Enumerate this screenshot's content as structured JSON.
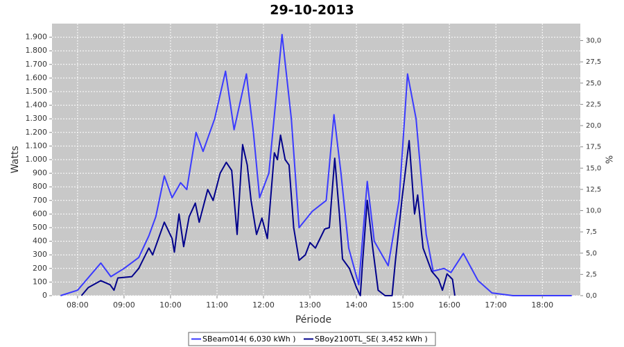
{
  "chart_data": {
    "type": "line",
    "title": "29-10-2013",
    "x_label": "Période",
    "y_label": "Watts",
    "y2_label": "%",
    "grid": true,
    "legend": "bottom",
    "xlim": [
      "07:27",
      "18:49"
    ],
    "xticks": [
      "08:00",
      "09:00",
      "10:00",
      "11:00",
      "12:00",
      "13:00",
      "14:00",
      "15:00",
      "16:00",
      "17:00",
      "18:00"
    ],
    "ylim": [
      0,
      2000
    ],
    "yticks": [
      0,
      100,
      200,
      300,
      400,
      500,
      600,
      700,
      800,
      900,
      {
        "value": 1000,
        "label": "1.000"
      },
      {
        "value": 1100,
        "label": "1.100"
      },
      {
        "value": 1200,
        "label": "1.200"
      },
      {
        "value": 1300,
        "label": "1.300"
      },
      {
        "value": 1400,
        "label": "1.400"
      },
      {
        "value": 1500,
        "label": "1.500"
      },
      {
        "value": 1600,
        "label": "1.600"
      },
      {
        "value": 1700,
        "label": "1.700"
      },
      {
        "value": 1800,
        "label": "1.800"
      },
      {
        "value": 1900,
        "label": "1.900"
      }
    ],
    "y2lim": [
      0,
      32
    ],
    "y2ticks": [
      {
        "value": 0,
        "label": "0,0"
      },
      {
        "value": 2.5,
        "label": "2,5"
      },
      {
        "value": 5,
        "label": "5,0"
      },
      {
        "value": 7.5,
        "label": "7,5"
      },
      {
        "value": 10,
        "label": "10,0"
      },
      {
        "value": 12.5,
        "label": "12,5"
      },
      {
        "value": 15,
        "label": "15,0"
      },
      {
        "value": 17.5,
        "label": "17,5"
      },
      {
        "value": 20,
        "label": "20,0"
      },
      {
        "value": 22.5,
        "label": "22,5"
      },
      {
        "value": 25,
        "label": "25,0"
      },
      {
        "value": 27.5,
        "label": "27,5"
      },
      {
        "value": 30,
        "label": "30,0"
      }
    ],
    "series": [
      {
        "name": "SBeam014( 6,030 kWh )",
        "color": "#3a3aff",
        "x": [
          "07:38",
          "08:00",
          "08:30",
          "08:43",
          "09:00",
          "09:19",
          "09:32",
          "09:41",
          "09:52",
          "10:02",
          "10:13",
          "10:21",
          "10:33",
          "10:42",
          "10:57",
          "11:11",
          "11:22",
          "11:38",
          "11:47",
          "11:55",
          "12:07",
          "12:24",
          "12:36",
          "12:46",
          "13:03",
          "13:21",
          "13:31",
          "13:40",
          "13:50",
          "14:03",
          "14:14",
          "14:23",
          "14:41",
          "14:55",
          "15:06",
          "15:17",
          "15:30",
          "15:39",
          "15:53",
          "16:02",
          "16:18",
          "16:37",
          "16:55",
          "17:22",
          "18:38"
        ],
        "values": [
          0,
          40,
          240,
          140,
          200,
          280,
          440,
          580,
          880,
          720,
          830,
          780,
          1200,
          1060,
          1300,
          1650,
          1220,
          1630,
          1200,
          720,
          900,
          1920,
          1300,
          500,
          620,
          700,
          1330,
          900,
          350,
          80,
          840,
          400,
          220,
          700,
          1630,
          1300,
          450,
          180,
          200,
          170,
          310,
          110,
          20,
          0,
          0
        ]
      },
      {
        "name": "SBoy2100TL_SE( 3,452 kWh )",
        "color": "#00008b",
        "x": [
          "08:05",
          "08:14",
          "08:30",
          "08:42",
          "08:47",
          "08:52",
          "09:10",
          "09:19",
          "09:32",
          "09:37",
          "09:52",
          "10:02",
          "10:05",
          "10:11",
          "10:17",
          "10:24",
          "10:32",
          "10:37",
          "10:48",
          "10:55",
          "11:04",
          "11:12",
          "11:19",
          "11:26",
          "11:33",
          "11:39",
          "11:44",
          "11:51",
          "11:58",
          "12:05",
          "12:14",
          "12:18",
          "12:22",
          "12:28",
          "12:33",
          "12:39",
          "12:46",
          "12:54",
          "13:00",
          "13:07",
          "13:19",
          "13:25",
          "13:32",
          "13:38",
          "13:42",
          "13:51",
          "14:00",
          "14:05",
          "14:08",
          "14:14",
          "14:21",
          "14:28",
          "14:37",
          "14:46",
          "14:50",
          "14:59",
          "15:08",
          "15:15",
          "15:19",
          "15:26",
          "15:37",
          "15:46",
          "15:51",
          "15:57",
          "16:04",
          "16:07"
        ],
        "values": [
          0,
          60,
          110,
          80,
          40,
          130,
          140,
          200,
          350,
          300,
          540,
          420,
          320,
          600,
          360,
          580,
          680,
          540,
          780,
          700,
          900,
          980,
          920,
          450,
          1110,
          960,
          700,
          450,
          570,
          420,
          1050,
          1000,
          1180,
          1000,
          960,
          500,
          260,
          300,
          390,
          350,
          490,
          500,
          1010,
          600,
          270,
          200,
          60,
          0,
          250,
          700,
          350,
          40,
          0,
          0,
          240,
          720,
          1140,
          600,
          740,
          350,
          180,
          120,
          40,
          160,
          120,
          0
        ]
      }
    ]
  }
}
